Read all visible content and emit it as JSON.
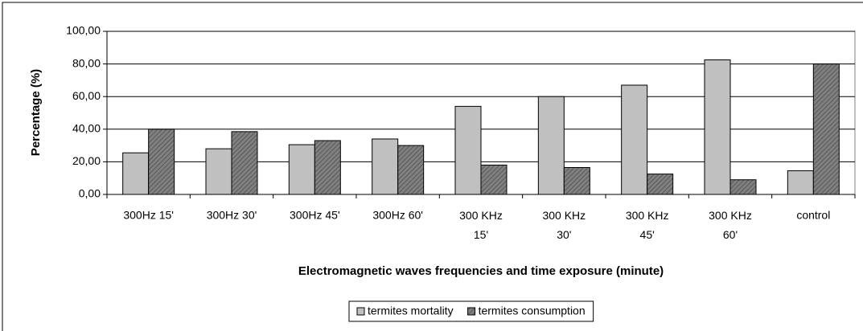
{
  "chart_data": {
    "type": "bar",
    "xlabel": "Electromagnetic waves frequencies and time exposure (minute)",
    "ylabel": "Percentage (%)",
    "categories": [
      "300Hz 15'",
      "300Hz 30'",
      "300Hz 45'",
      "300Hz 60'",
      "300 KHz 15'",
      "300 KHz 30'",
      "300 KHz 45'",
      "300 KHz 60'",
      "control"
    ],
    "series": [
      {
        "name": "termites mortality",
        "color": "#c0c0c0",
        "values": [
          25.5,
          28,
          30.5,
          34,
          54,
          60,
          67,
          82.5,
          14.5
        ]
      },
      {
        "name": "termites consumption",
        "color": "#808080",
        "values": [
          40,
          38.5,
          33,
          30,
          18,
          16.5,
          12.5,
          9,
          80
        ]
      }
    ],
    "ylim": [
      0,
      100
    ],
    "yticks": [
      {
        "value": 0,
        "label": "0,00"
      },
      {
        "value": 20,
        "label": "20,00"
      },
      {
        "value": 40,
        "label": "40,00"
      },
      {
        "value": 60,
        "label": "60,00"
      },
      {
        "value": 80,
        "label": "80,00"
      },
      {
        "value": 100,
        "label": "100,00"
      }
    ],
    "grid": true,
    "legend": "bottom"
  }
}
